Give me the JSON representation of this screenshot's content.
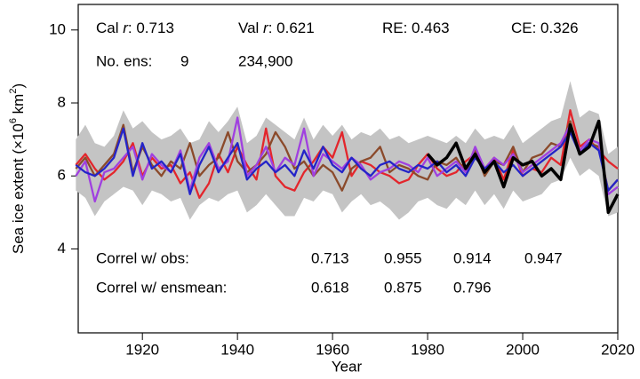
{
  "chart_data": {
    "type": "line",
    "y_label_parts": [
      "Sea ice extent (×10",
      "6",
      " km",
      "2",
      ")"
    ],
    "x_label": "Year",
    "stats": [
      [
        "Cal ",
        "r",
        ": 0.713"
      ],
      [
        "Val ",
        "r",
        ": 0.621"
      ],
      [
        "RE: 0.463"
      ],
      [
        "CE: 0.326"
      ]
    ],
    "ens_label": "No. ens:",
    "ens_values": [
      {
        "text": "9",
        "color": "#e3262c"
      },
      {
        "text": "234,900",
        "color": "#2424c8"
      }
    ],
    "correl_obs_label": "Correl w/ obs:",
    "correl_obs": [
      0.713,
      0.955,
      0.914,
      0.947
    ],
    "correl_ensmean_label": "Correl w/ ensmean:",
    "correl_ensmean": [
      0.618,
      0.875,
      0.796
    ],
    "correl_colors": [
      "#e3262c",
      "#8b4a2b",
      "#a040e0",
      "#2424c8"
    ],
    "xlim": [
      1906.5,
      2020
    ],
    "ylim": [
      1.7,
      10.7
    ],
    "xticks": [
      1920,
      1940,
      1960,
      1980,
      2000,
      2020
    ],
    "yticks": [
      4,
      6,
      8,
      10
    ],
    "x": [
      1906,
      1908,
      1910,
      1912,
      1914,
      1916,
      1918,
      1920,
      1922,
      1924,
      1926,
      1928,
      1930,
      1932,
      1934,
      1936,
      1938,
      1940,
      1942,
      1944,
      1946,
      1948,
      1950,
      1952,
      1954,
      1956,
      1958,
      1960,
      1962,
      1964,
      1966,
      1968,
      1970,
      1972,
      1974,
      1976,
      1978,
      1980,
      1982,
      1984,
      1986,
      1988,
      1990,
      1992,
      1994,
      1996,
      1998,
      2000,
      2002,
      2004,
      2006,
      2008,
      2010,
      2012,
      2014,
      2016,
      2018,
      2020
    ],
    "band": {
      "color": "#c4c4c4",
      "lower": [
        5.6,
        5.4,
        4.9,
        5.3,
        5.5,
        5.7,
        5.6,
        5.2,
        5.6,
        5.5,
        5.3,
        5.4,
        4.8,
        5.2,
        5.4,
        5.3,
        5.5,
        5.6,
        5.0,
        5.2,
        5.5,
        5.2,
        4.9,
        4.9,
        5.4,
        5.3,
        5.6,
        5.5,
        5.0,
        5.3,
        5.5,
        5.2,
        5.3,
        5.1,
        4.8,
        5.0,
        5.3,
        5.4,
        5.2,
        5.1,
        5.4,
        5.2,
        5.6,
        5.2,
        5.5,
        5.1,
        5.6,
        5.3,
        5.4,
        5.5,
        5.8,
        5.9,
        6.5,
        6.0,
        6.2,
        6.0,
        4.9,
        5.0
      ],
      "upper": [
        7.0,
        7.4,
        6.9,
        6.8,
        7.1,
        7.8,
        7.3,
        7.5,
        7.2,
        7.0,
        7.1,
        7.3,
        6.9,
        7.0,
        7.5,
        7.2,
        7.5,
        7.9,
        6.9,
        7.1,
        7.6,
        7.4,
        7.2,
        7.0,
        7.6,
        7.0,
        7.4,
        7.1,
        7.4,
        7.0,
        7.2,
        7.1,
        7.3,
        7.0,
        7.1,
        6.9,
        7.0,
        7.1,
        7.0,
        6.9,
        7.1,
        6.9,
        7.3,
        7.0,
        7.1,
        7.0,
        7.4,
        6.9,
        7.1,
        7.3,
        7.5,
        7.6,
        8.6,
        7.6,
        7.8,
        7.7,
        6.6,
        6.8
      ]
    },
    "series": [
      {
        "color": "#e3262c",
        "values": [
          6.3,
          6.6,
          6.2,
          5.9,
          6.1,
          6.4,
          6.9,
          6.0,
          6.5,
          6.2,
          6.3,
          5.8,
          6.1,
          5.4,
          5.8,
          6.6,
          6.1,
          6.8,
          6.3,
          5.9,
          7.3,
          6.0,
          5.7,
          5.6,
          6.1,
          6.4,
          6.8,
          6.5,
          7.2,
          6.0,
          6.4,
          6.3,
          6.1,
          6.0,
          5.8,
          5.9,
          6.3,
          6.6,
          6.2,
          6.0,
          6.1,
          6.4,
          6.6,
          6.2,
          6.5,
          5.9,
          6.7,
          6.0,
          6.2,
          6.1,
          6.5,
          6.3,
          7.8,
          6.8,
          7.0,
          6.7,
          6.4,
          6.2
        ]
      },
      {
        "color": "#8b4a2b",
        "values": [
          6.2,
          6.5,
          6.0,
          6.3,
          6.6,
          7.4,
          6.1,
          6.8,
          6.3,
          6.0,
          6.4,
          6.2,
          6.9,
          6.0,
          6.3,
          6.5,
          7.2,
          6.4,
          6.1,
          6.3,
          6.6,
          7.2,
          6.8,
          6.2,
          6.4,
          6.0,
          6.3,
          6.1,
          5.6,
          6.2,
          6.4,
          6.5,
          6.8,
          6.1,
          6.3,
          6.2,
          6.0,
          5.9,
          6.4,
          6.3,
          6.5,
          6.1,
          6.7,
          6.0,
          6.4,
          6.3,
          6.8,
          6.1,
          6.5,
          6.6,
          6.9,
          6.8,
          7.5,
          6.6,
          6.9,
          6.8,
          5.6,
          5.9
        ]
      },
      {
        "color": "#a040e0",
        "values": [
          6.0,
          6.4,
          5.3,
          6.1,
          6.2,
          6.5,
          6.8,
          5.9,
          6.6,
          6.3,
          6.1,
          6.7,
          5.6,
          6.5,
          6.9,
          6.2,
          6.4,
          7.6,
          6.0,
          6.3,
          6.8,
          6.1,
          6.5,
          6.3,
          7.3,
          6.0,
          6.6,
          6.4,
          6.2,
          6.5,
          6.3,
          5.9,
          6.1,
          6.2,
          6.4,
          6.3,
          6.1,
          6.5,
          6.0,
          6.2,
          6.4,
          6.1,
          6.8,
          6.2,
          6.5,
          6.3,
          6.6,
          6.1,
          6.3,
          6.5,
          6.7,
          6.9,
          7.4,
          6.7,
          7.0,
          6.9,
          5.5,
          5.7
        ]
      },
      {
        "color": "#2424c8",
        "values": [
          6.3,
          6.1,
          6.0,
          6.2,
          6.5,
          7.3,
          6.0,
          6.9,
          6.2,
          6.4,
          6.1,
          6.6,
          5.5,
          6.3,
          6.8,
          6.1,
          6.5,
          6.9,
          5.9,
          6.2,
          6.4,
          6.1,
          6.3,
          6.0,
          6.7,
          6.2,
          6.8,
          6.3,
          6.1,
          6.5,
          6.2,
          6.0,
          6.3,
          6.4,
          6.2,
          6.1,
          6.3,
          6.2,
          6.4,
          6.1,
          6.3,
          6.0,
          6.5,
          6.2,
          6.4,
          6.1,
          6.3,
          6.0,
          6.2,
          6.4,
          6.6,
          6.8,
          7.2,
          6.6,
          6.9,
          6.7,
          5.6,
          5.9
        ]
      },
      {
        "color": "#000000",
        "width": 3.5,
        "values": [
          null,
          null,
          null,
          null,
          null,
          null,
          null,
          null,
          null,
          null,
          null,
          null,
          null,
          null,
          null,
          null,
          null,
          null,
          null,
          null,
          null,
          null,
          null,
          null,
          null,
          null,
          null,
          null,
          null,
          null,
          null,
          null,
          null,
          null,
          null,
          null,
          null,
          6.6,
          6.3,
          6.5,
          6.9,
          6.2,
          6.6,
          6.1,
          6.4,
          5.7,
          6.5,
          6.3,
          6.4,
          6.0,
          6.2,
          5.9,
          7.4,
          6.6,
          6.8,
          7.5,
          5.0,
          5.5
        ]
      }
    ]
  }
}
